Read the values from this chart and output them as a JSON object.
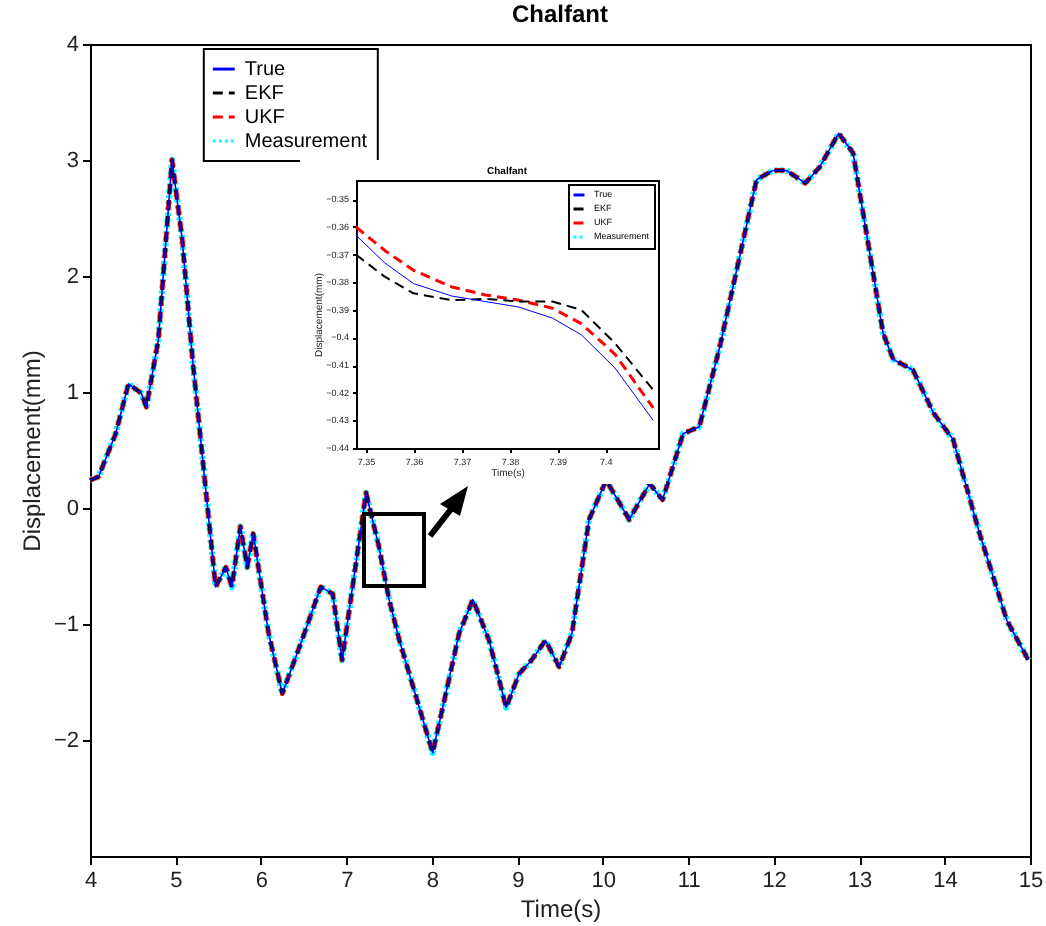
{
  "chart_data": [
    {
      "type": "line",
      "title": "Chalfant",
      "xlabel": "Time(s)",
      "ylabel": "Displacement(mm)",
      "xlim": [
        4,
        15
      ],
      "ylim": [
        -3,
        4
      ],
      "xticks": [
        4,
        5,
        6,
        7,
        8,
        9,
        10,
        11,
        12,
        13,
        14,
        15
      ],
      "yticks": [
        -2,
        -1,
        0,
        1,
        2,
        3,
        4
      ],
      "grid": false,
      "legend": "top left",
      "x": [
        4.0,
        4.1,
        4.3,
        4.45,
        4.6,
        4.66,
        4.8,
        4.96,
        5.08,
        5.2,
        5.47,
        5.59,
        5.66,
        5.76,
        5.84,
        5.91,
        6.09,
        6.25,
        6.48,
        6.7,
        6.84,
        6.95,
        7.23,
        7.38,
        7.5,
        7.62,
        8.01,
        8.32,
        8.48,
        8.67,
        8.87,
        9.02,
        9.17,
        9.33,
        9.49,
        9.64,
        9.84,
        10.04,
        10.31,
        10.55,
        10.7,
        10.94,
        11.13,
        11.37,
        11.8,
        11.99,
        12.15,
        12.37,
        12.54,
        12.76,
        12.93,
        13.28,
        13.4,
        13.63,
        13.87,
        14.1,
        14.41,
        14.73,
        14.98
      ],
      "series": [
        {
          "name": "True",
          "color": "#0000ff",
          "line_style": "solid",
          "values": [
            0.24,
            0.27,
            0.64,
            1.07,
            0.99,
            0.87,
            1.45,
            3.0,
            2.31,
            1.28,
            -0.68,
            -0.51,
            -0.68,
            -0.16,
            -0.51,
            -0.22,
            -1.08,
            -1.6,
            -1.14,
            -0.68,
            -0.74,
            -1.31,
            0.13,
            -0.33,
            -0.79,
            -1.14,
            -2.11,
            -1.08,
            -0.79,
            -1.14,
            -1.72,
            -1.43,
            -1.31,
            -1.14,
            -1.37,
            -1.08,
            -0.1,
            0.24,
            -0.1,
            0.21,
            0.07,
            0.64,
            0.7,
            1.39,
            2.83,
            2.91,
            2.91,
            2.8,
            2.94,
            3.23,
            3.06,
            1.51,
            1.28,
            1.19,
            0.82,
            0.59,
            -0.22,
            -0.97,
            -1.31
          ]
        },
        {
          "name": "EKF",
          "color": "#000000",
          "line_style": "dashed",
          "values": [
            0.24,
            0.27,
            0.64,
            1.07,
            0.99,
            0.87,
            1.45,
            3.0,
            2.31,
            1.28,
            -0.68,
            -0.51,
            -0.68,
            -0.16,
            -0.51,
            -0.22,
            -1.08,
            -1.6,
            -1.14,
            -0.68,
            -0.74,
            -1.31,
            0.13,
            -0.33,
            -0.79,
            -1.14,
            -2.11,
            -1.08,
            -0.79,
            -1.14,
            -1.72,
            -1.43,
            -1.31,
            -1.14,
            -1.37,
            -1.08,
            -0.1,
            0.24,
            -0.1,
            0.21,
            0.07,
            0.64,
            0.7,
            1.39,
            2.83,
            2.91,
            2.91,
            2.8,
            2.94,
            3.23,
            3.06,
            1.51,
            1.28,
            1.19,
            0.82,
            0.59,
            -0.22,
            -0.97,
            -1.31
          ]
        },
        {
          "name": "UKF",
          "color": "#ff0000",
          "line_style": "dashed",
          "values": [
            0.24,
            0.27,
            0.64,
            1.07,
            0.99,
            0.87,
            1.45,
            3.0,
            2.31,
            1.28,
            -0.68,
            -0.51,
            -0.68,
            -0.16,
            -0.51,
            -0.22,
            -1.08,
            -1.6,
            -1.14,
            -0.68,
            -0.74,
            -1.31,
            0.13,
            -0.33,
            -0.79,
            -1.14,
            -2.11,
            -1.08,
            -0.79,
            -1.14,
            -1.72,
            -1.43,
            -1.31,
            -1.14,
            -1.37,
            -1.08,
            -0.1,
            0.24,
            -0.1,
            0.21,
            0.07,
            0.64,
            0.7,
            1.39,
            2.83,
            2.91,
            2.91,
            2.8,
            2.94,
            3.23,
            3.06,
            1.51,
            1.28,
            1.19,
            0.82,
            0.59,
            -0.22,
            -0.97,
            -1.31
          ]
        },
        {
          "name": "Measurement",
          "color": "#00ffff",
          "line_style": "dotted",
          "values": [
            0.24,
            0.27,
            0.64,
            1.07,
            0.99,
            0.87,
            1.45,
            3.0,
            2.31,
            1.28,
            -0.68,
            -0.51,
            -0.68,
            -0.16,
            -0.51,
            -0.22,
            -1.08,
            -1.6,
            -1.14,
            -0.68,
            -0.74,
            -1.31,
            0.13,
            -0.33,
            -0.79,
            -1.14,
            -2.11,
            -1.08,
            -0.79,
            -1.14,
            -1.72,
            -1.43,
            -1.31,
            -1.14,
            -1.37,
            -1.08,
            -0.1,
            0.24,
            -0.1,
            0.21,
            0.07,
            0.64,
            0.7,
            1.39,
            2.83,
            2.91,
            2.91,
            2.8,
            2.94,
            3.23,
            3.06,
            1.51,
            1.28,
            1.19,
            0.82,
            0.59,
            -0.22,
            -0.97,
            -1.31
          ]
        }
      ]
    },
    {
      "type": "line",
      "title": "Chalfant",
      "xlabel": "Time(s)",
      "ylabel": "Displacement(mm)",
      "xlim": [
        7.348,
        7.411
      ],
      "ylim": [
        -0.44,
        -0.343
      ],
      "xticks": [
        7.35,
        7.36,
        7.37,
        7.38,
        7.39,
        7.4
      ],
      "yticks": [
        -0.44,
        -0.43,
        -0.42,
        -0.41,
        -0.4,
        -0.39,
        -0.38,
        -0.37,
        -0.36,
        -0.35
      ],
      "grid": false,
      "legend": "top right",
      "x": [
        7.348,
        7.354,
        7.36,
        7.368,
        7.375,
        7.382,
        7.389,
        7.395,
        7.402,
        7.41
      ],
      "series": [
        {
          "name": "True",
          "color": "#0000ff",
          "line_style": "solid",
          "values": [
            -0.363,
            -0.373,
            -0.3805,
            -0.385,
            -0.387,
            -0.389,
            -0.393,
            -0.399,
            -0.411,
            -0.43
          ]
        },
        {
          "name": "EKF",
          "color": "#000000",
          "line_style": "dashed",
          "values": [
            -0.37,
            -0.378,
            -0.384,
            -0.3865,
            -0.386,
            -0.387,
            -0.387,
            -0.39,
            -0.402,
            -0.419
          ]
        },
        {
          "name": "UKF",
          "color": "#ff0000",
          "line_style": "dashed",
          "values": [
            -0.36,
            -0.3685,
            -0.3757,
            -0.3817,
            -0.3846,
            -0.3865,
            -0.3894,
            -0.395,
            -0.406,
            -0.4255
          ]
        },
        {
          "name": "Measurement",
          "color": "#00ffff",
          "line_style": "dotted",
          "values": [
            null,
            null,
            null,
            null,
            null,
            null,
            null,
            null,
            null,
            null
          ]
        }
      ]
    }
  ]
}
